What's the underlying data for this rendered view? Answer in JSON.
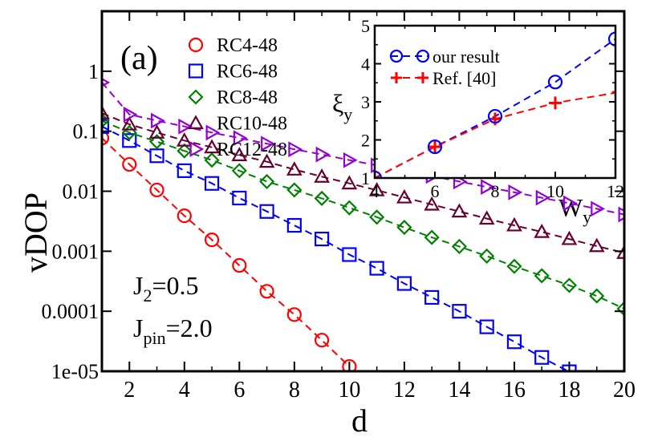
{
  "chart_data": [
    {
      "type": "line",
      "panel_label": "(a)",
      "xlabel": "d",
      "ylabel": "vDOP",
      "yscale": "log",
      "xlim": [
        1,
        20
      ],
      "ylim": [
        1e-05,
        10
      ],
      "xticks": [
        "2",
        "4",
        "6",
        "8",
        "10",
        "12",
        "14",
        "16",
        "18",
        "20"
      ],
      "yticks": [
        {
          "value": 1e-05,
          "label": "1e-05"
        },
        {
          "value": 0.0001,
          "label": "0.0001"
        },
        {
          "value": 0.001,
          "label": "0.001"
        },
        {
          "value": 0.01,
          "label": "0.01"
        },
        {
          "value": 0.1,
          "label": "0.1"
        },
        {
          "value": 1,
          "label": "1"
        }
      ],
      "annotations": [
        {
          "main": "J",
          "sub": "2",
          "rest": "=0.5"
        },
        {
          "main": "J",
          "sub": "pin",
          "rest": "=2.0"
        }
      ],
      "legend_position": "top-center",
      "series": [
        {
          "name": "RC4-48",
          "color": "#ff0000",
          "marker": "circle",
          "x": [
            1,
            2,
            3,
            4,
            5,
            6,
            7,
            8,
            9,
            10
          ],
          "y": [
            0.077,
            0.028,
            0.0105,
            0.0039,
            0.00155,
            0.00058,
            0.000215,
            8.8e-05,
            3.3e-05,
            1.2e-05
          ]
        },
        {
          "name": "RC6-48",
          "color": "#0000ff",
          "marker": "square",
          "x": [
            1,
            2,
            3,
            4,
            5,
            6,
            7,
            8,
            9,
            10,
            11,
            12,
            13,
            14,
            15,
            16,
            17,
            18
          ],
          "y": [
            0.12,
            0.07,
            0.039,
            0.022,
            0.0135,
            0.0077,
            0.0046,
            0.0027,
            0.0016,
            0.00088,
            0.00052,
            0.00029,
            0.00017,
            0.0001,
            5.5e-05,
            3.1e-05,
            1.7e-05,
            9.8e-06
          ]
        },
        {
          "name": "RC8-48",
          "color": "#008000",
          "marker": "diamond",
          "x": [
            1,
            2,
            3,
            4,
            5,
            6,
            7,
            8,
            9,
            10,
            11,
            12,
            13,
            14,
            15,
            16,
            17,
            18,
            19,
            20
          ],
          "y": [
            0.15,
            0.095,
            0.067,
            0.047,
            0.033,
            0.022,
            0.0145,
            0.0105,
            0.0076,
            0.0053,
            0.0037,
            0.0025,
            0.0017,
            0.0012,
            0.00083,
            0.00056,
            0.00039,
            0.00027,
            0.00018,
            0.00011
          ]
        },
        {
          "name": "RC10-48",
          "color": "#660033",
          "marker": "triangle-up",
          "x": [
            1,
            2,
            3,
            4,
            5,
            6,
            7,
            8,
            9,
            10,
            11,
            12,
            13,
            14,
            15,
            16,
            17,
            18,
            19,
            20
          ],
          "y": [
            0.2,
            0.13,
            0.095,
            0.07,
            0.054,
            0.04,
            0.031,
            0.023,
            0.0175,
            0.0135,
            0.0104,
            0.0079,
            0.006,
            0.0046,
            0.0035,
            0.0027,
            0.0021,
            0.0016,
            0.00122,
            0.00094
          ]
        },
        {
          "name": "RC12-48",
          "color": "#9400d3",
          "marker": "triangle-right",
          "x": [
            1,
            2,
            3,
            4,
            5,
            6,
            7,
            8,
            9,
            10,
            11,
            12,
            13,
            14,
            15,
            16,
            17,
            18,
            19,
            20
          ],
          "y": [
            0.65,
            0.19,
            0.15,
            0.12,
            0.095,
            0.077,
            0.062,
            0.05,
            0.041,
            0.033,
            0.027,
            0.022,
            0.018,
            0.0145,
            0.0118,
            0.0096,
            0.0078,
            0.0063,
            0.0051,
            0.0041
          ]
        }
      ]
    },
    {
      "type": "line",
      "inset": true,
      "xlabel": "W",
      "xlabel_sub": "y",
      "ylabel": "ξ",
      "ylabel_sub": "y",
      "xlim": [
        4,
        12
      ],
      "ylim": [
        1,
        5
      ],
      "xticks": [
        "4",
        "6",
        "8",
        "10",
        "12"
      ],
      "yticks": [
        "1",
        "2",
        "3",
        "4",
        "5"
      ],
      "legend_position": "top-left",
      "series": [
        {
          "name": "our result",
          "color": "#0000ff",
          "marker": "circle",
          "x": [
            4,
            6,
            8,
            10,
            12
          ],
          "y": [
            1.0,
            1.82,
            2.62,
            3.52,
            4.65
          ]
        },
        {
          "name": "Ref. [40]",
          "color": "#ff0000",
          "marker": "plus",
          "x": [
            4,
            6,
            8,
            10,
            12.1
          ],
          "y": [
            1.0,
            1.82,
            2.55,
            2.97,
            3.25
          ]
        }
      ]
    }
  ]
}
